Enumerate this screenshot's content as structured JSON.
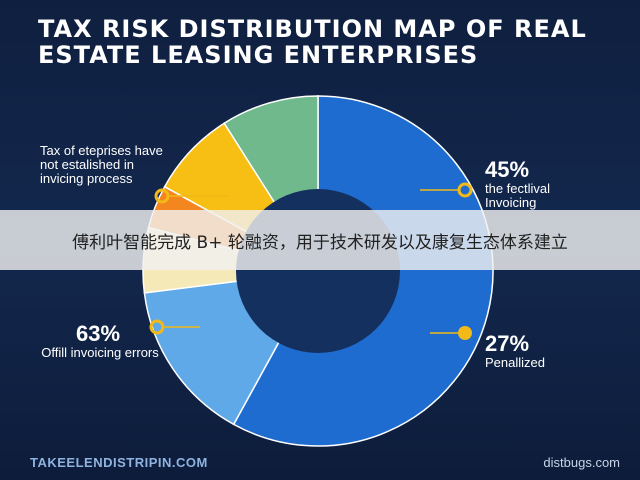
{
  "title": "TAX RISK DISTRIBUTION MAP OF REAL ESTATE LEASING ENTERPRISES",
  "banner_text": "傅利叶智能完成 B+ 轮融资，用于技术研发以及康复生态体系建立",
  "note_top_left": "Tax of eteprises have not estalished in invicing process",
  "callouts": {
    "top_right": {
      "pct": "45%",
      "text": "the fectlival Invoicing"
    },
    "bottom_left": {
      "pct": "63%",
      "text": "Offill invoicing errors"
    },
    "bottom_right": {
      "pct": "27%",
      "text": "Penallized"
    }
  },
  "footer": {
    "left": "TAKEELENDISTRIPIN.COM",
    "right": "distbugs.com"
  },
  "colors": {
    "background": "#0f1f3f",
    "blue_dark": "#1e6ccf",
    "blue_light": "#5fa9e8",
    "cream": "#f6e9b8",
    "orange": "#f3861e",
    "yellow": "#f7be13",
    "green": "#6fb98c",
    "marker": "#f2b918"
  },
  "chart_data": {
    "type": "pie",
    "title": "TAX RISK DISTRIBUTION MAP OF REAL ESTATE LEASING ENTERPRISES",
    "donut": true,
    "slices": [
      {
        "label": "",
        "value": 58,
        "color": "#1e6ccf"
      },
      {
        "label": "",
        "value": 15,
        "color": "#5fa9e8"
      },
      {
        "label": "",
        "value": 6,
        "color": "#f6e9b8"
      },
      {
        "label": "",
        "value": 4,
        "color": "#f3861e"
      },
      {
        "label": "",
        "value": 8,
        "color": "#f7be13"
      },
      {
        "label": "",
        "value": 9,
        "color": "#6fb98c"
      }
    ],
    "callout_values": [
      "45%",
      "63%",
      "27%"
    ]
  }
}
